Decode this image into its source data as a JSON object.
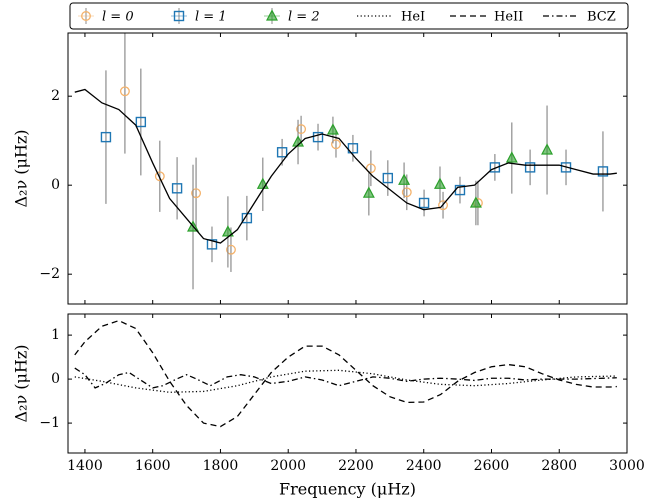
{
  "chart_data": [
    {
      "type": "scatter",
      "ylabel": "Δ₂ν (μHz)",
      "legend": "top",
      "show_xtick_labels": false,
      "xlim": [
        1350,
        3000
      ],
      "xticks": [
        1400,
        1600,
        1800,
        2000,
        2200,
        2400,
        2600,
        2800,
        3000
      ],
      "ylim": [
        -2.67,
        3.42
      ],
      "yticks": [
        {
          "value": -2,
          "label": "−2"
        },
        0,
        2
      ],
      "error_color": "#8c8c8c",
      "series": [
        {
          "name": "l = 0",
          "marker": "circle",
          "color": "#f4b26b",
          "x": [
            1518,
            1621,
            1728,
            1831,
            2038,
            2141,
            2244,
            2350,
            2457,
            2560
          ],
          "values": [
            2.11,
            0.2,
            -0.18,
            -1.45,
            1.26,
            0.92,
            0.38,
            -0.16,
            -0.45,
            -0.4
          ],
          "errors": [
            1.4,
            0.8,
            0.8,
            0.5,
            0.3,
            0.3,
            0.4,
            0.4,
            0.3,
            0.5
          ]
        },
        {
          "name": "l = 1",
          "marker": "square",
          "color": "#1f77b4",
          "x": [
            1462,
            1565,
            1672,
            1775,
            1878,
            1982,
            2088,
            2191,
            2294,
            2401,
            2507,
            2610,
            2714,
            2820,
            2929
          ],
          "values": [
            1.08,
            1.42,
            -0.07,
            -1.33,
            -0.74,
            0.74,
            1.08,
            0.83,
            0.16,
            -0.4,
            -0.11,
            0.4,
            0.4,
            0.4,
            0.31
          ],
          "errors": [
            1.5,
            1.2,
            0.7,
            0.4,
            0.5,
            0.3,
            0.3,
            0.3,
            0.4,
            0.3,
            0.3,
            0.3,
            0.4,
            0.4,
            0.9
          ]
        },
        {
          "name": "l = 2",
          "marker": "triangle",
          "color": "#2ca02c",
          "x": [
            1719,
            1822,
            1925,
            2029,
            2132,
            2238,
            2342,
            2448,
            2554,
            2660,
            2764
          ],
          "values": [
            -0.94,
            -1.05,
            0.02,
            0.97,
            1.24,
            -0.18,
            0.11,
            0.02,
            -0.4,
            0.61,
            0.79
          ],
          "errors": [
            1.4,
            0.8,
            0.6,
            0.5,
            0.3,
            0.5,
            0.4,
            0.4,
            0.5,
            0.8,
            1.0
          ]
        },
        {
          "line": "solid",
          "color": "#000000",
          "x": [
            1370,
            1400,
            1450,
            1500,
            1550,
            1600,
            1650,
            1700,
            1750,
            1800,
            1850,
            1900,
            1950,
            2000,
            2050,
            2100,
            2150,
            2200,
            2250,
            2300,
            2350,
            2400,
            2450,
            2500,
            2550,
            2600,
            2650,
            2700,
            2750,
            2800,
            2850,
            2900,
            2950,
            2970
          ],
          "values": [
            2.09,
            2.15,
            1.85,
            1.7,
            1.35,
            0.5,
            -0.3,
            -0.75,
            -1.2,
            -1.3,
            -1.0,
            -0.4,
            0.2,
            0.7,
            1.05,
            1.15,
            1.05,
            0.6,
            0.2,
            -0.1,
            -0.4,
            -0.55,
            -0.5,
            -0.05,
            0.0,
            0.35,
            0.5,
            0.45,
            0.45,
            0.45,
            0.35,
            0.25,
            0.25,
            0.27
          ]
        }
      ]
    },
    {
      "type": "line",
      "xlabel": "Frequency (μHz)",
      "ylabel": "Δ₂ν (μHz)",
      "xlim": [
        1350,
        3000
      ],
      "xticks": [
        1400,
        1600,
        1800,
        2000,
        2200,
        2400,
        2600,
        2800,
        3000
      ],
      "ylim": [
        -1.68,
        1.48
      ],
      "yticks": [
        {
          "value": -1,
          "label": "−1"
        },
        0,
        1
      ],
      "series": [
        {
          "name": "HeI",
          "line": "dotted",
          "color": "#000000",
          "x": [
            1370,
            1450,
            1550,
            1650,
            1750,
            1850,
            1950,
            2050,
            2150,
            2250,
            2350,
            2450,
            2550,
            2650,
            2750,
            2850,
            2970
          ],
          "values": [
            0.05,
            -0.05,
            -0.2,
            -0.3,
            -0.28,
            -0.15,
            0.05,
            0.18,
            0.2,
            0.12,
            -0.02,
            -0.12,
            -0.15,
            -0.1,
            -0.02,
            0.05,
            0.07
          ]
        },
        {
          "name": "HeII",
          "line": "dashed",
          "color": "#000000",
          "x": [
            1370,
            1400,
            1450,
            1500,
            1550,
            1600,
            1650,
            1700,
            1750,
            1800,
            1850,
            1900,
            1950,
            2000,
            2050,
            2100,
            2150,
            2200,
            2250,
            2300,
            2350,
            2400,
            2450,
            2500,
            2550,
            2600,
            2650,
            2700,
            2750,
            2800,
            2850,
            2900,
            2950,
            2970
          ],
          "values": [
            0.55,
            0.85,
            1.2,
            1.33,
            1.15,
            0.6,
            -0.05,
            -0.6,
            -1.0,
            -1.08,
            -0.85,
            -0.35,
            0.15,
            0.5,
            0.75,
            0.75,
            0.55,
            0.2,
            -0.15,
            -0.4,
            -0.53,
            -0.52,
            -0.35,
            -0.05,
            0.15,
            0.28,
            0.33,
            0.28,
            0.12,
            -0.02,
            -0.12,
            -0.18,
            -0.18,
            -0.17
          ]
        },
        {
          "name": "BCZ",
          "line": "dashdot",
          "color": "#000000",
          "x": [
            1370,
            1400,
            1430,
            1460,
            1500,
            1530,
            1560,
            1600,
            1630,
            1670,
            1700,
            1730,
            1770,
            1820,
            1860,
            1900,
            1950,
            2000,
            2050,
            2100,
            2150,
            2200,
            2250,
            2300,
            2350,
            2400,
            2450,
            2500,
            2550,
            2600,
            2650,
            2700,
            2750,
            2800,
            2850,
            2970
          ],
          "values": [
            0.25,
            0.1,
            -0.2,
            -0.1,
            0.1,
            0.15,
            0.0,
            -0.2,
            -0.15,
            0.0,
            0.1,
            0.0,
            -0.15,
            0.05,
            0.1,
            0.05,
            -0.1,
            -0.05,
            0.05,
            -0.02,
            -0.15,
            -0.05,
            0.05,
            0.02,
            -0.05,
            0.0,
            0.02,
            0.0,
            -0.03,
            0.02,
            0.02,
            -0.02,
            0.0,
            0.0,
            0.0,
            0.03
          ]
        }
      ]
    }
  ]
}
